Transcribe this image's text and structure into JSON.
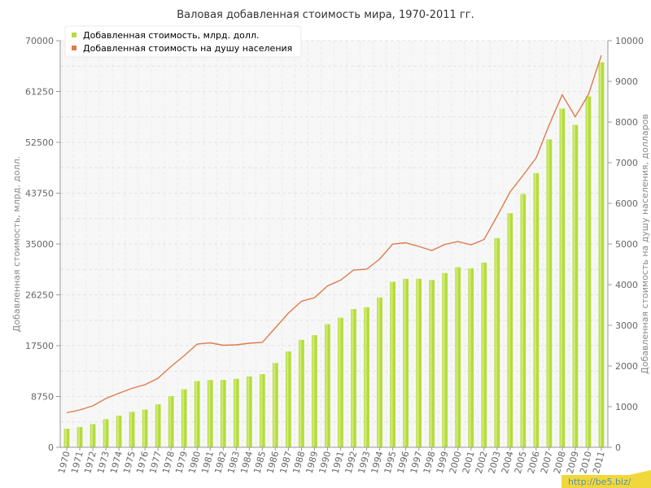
{
  "chart_data": {
    "type": "bar",
    "title": "Валовая добавленная стоимость мира, 1970-2011 гг.",
    "ylabel_left": "Добавленная стоимость, млрд. долл.",
    "ylabel_right": "Добавленная стоимость на душу населения, долларов",
    "ylim_left": [
      0,
      70000
    ],
    "ylim_right": [
      0,
      10000
    ],
    "yticks_left": [
      "0",
      "8750",
      "17500",
      "26250",
      "35000",
      "43750",
      "52500",
      "61250",
      "70000"
    ],
    "yticks_right": [
      "0",
      "1000",
      "2000",
      "3000",
      "4000",
      "5000",
      "6000",
      "7000",
      "8000",
      "9000",
      "10000"
    ],
    "grid": true,
    "legend_position": "top-left",
    "categories": [
      "1970",
      "1971",
      "1972",
      "1973",
      "1974",
      "1975",
      "1976",
      "1977",
      "1978",
      "1979",
      "1980",
      "1981",
      "1982",
      "1983",
      "1984",
      "1985",
      "1986",
      "1987",
      "1988",
      "1989",
      "1990",
      "1991",
      "1992",
      "1993",
      "1994",
      "1995",
      "1996",
      "1997",
      "1998",
      "1999",
      "2000",
      "2001",
      "2002",
      "2003",
      "2004",
      "2005",
      "2006",
      "2007",
      "2008",
      "2009",
      "2010",
      "2011"
    ],
    "series": [
      {
        "name": "Добавленная стоимость, млрд. долл.",
        "type": "bar",
        "axis": "left",
        "color": "#b5dc3c",
        "values": [
          3200,
          3500,
          4000,
          4850,
          5450,
          6100,
          6500,
          7400,
          8800,
          10000,
          11400,
          11600,
          11600,
          11800,
          12200,
          12600,
          14500,
          16500,
          18500,
          19300,
          21200,
          22300,
          23800,
          24100,
          25800,
          28500,
          29000,
          29000,
          28800,
          30000,
          31000,
          30800,
          31800,
          36000,
          40300,
          43600,
          47200,
          53000,
          58300,
          55500,
          60400,
          66300
        ]
      },
      {
        "name": "Добавленная стоимость на душу населения",
        "type": "line",
        "axis": "right",
        "color": "#e07a4a",
        "values": [
          850,
          920,
          1020,
          1200,
          1330,
          1450,
          1540,
          1700,
          1990,
          2250,
          2540,
          2570,
          2510,
          2520,
          2560,
          2580,
          2940,
          3300,
          3590,
          3680,
          3970,
          4110,
          4360,
          4380,
          4630,
          5000,
          5030,
          4940,
          4840,
          4990,
          5060,
          4980,
          5110,
          5680,
          6280,
          6690,
          7120,
          7930,
          8670,
          8130,
          8670,
          9640
        ]
      }
    ]
  },
  "watermark": "http://be5.biz/"
}
